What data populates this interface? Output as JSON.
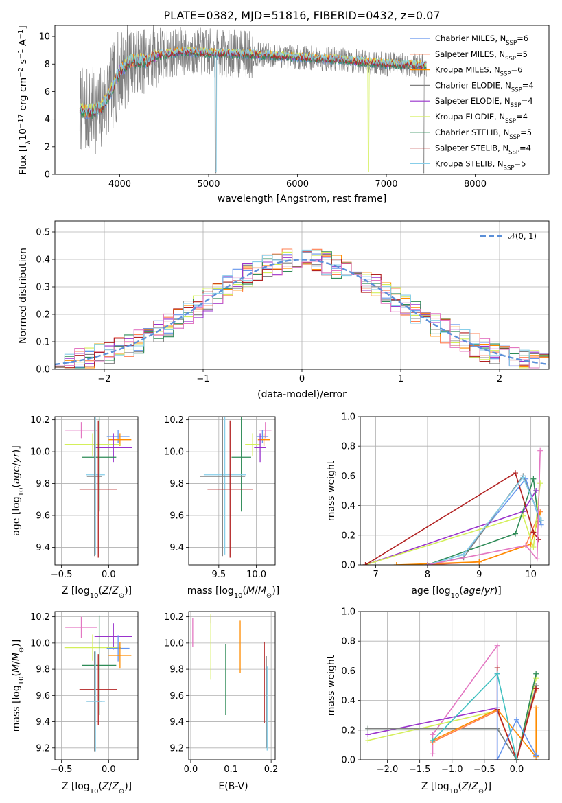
{
  "colors": {
    "Chabrier MILES": "#6495ed",
    "Salpeter MILES": "#ff7f50",
    "Kroupa MILES": "#ff8c00",
    "Chabrier ELODIE": "#808080",
    "Salpeter ELODIE": "#9932cc",
    "Kroupa ELODIE": "#d4ef5a",
    "Chabrier STELIB": "#2e8b57",
    "Salpeter STELIB": "#b22222",
    "Kroupa STELIB": "#87cee9",
    "Pink": "#e377c2",
    "Teal": "#40c0c0"
  },
  "chart_data": [
    {
      "id": "spectrum",
      "type": "line",
      "title": "PLATE=0382, MJD=51816, FIBERID=0432, z=0.07",
      "xlabel": "wavelength [Angstrom, rest frame]",
      "ylabel": "Flux [f_λ 10^−17 erg cm^−2 s^−1 A^−1]",
      "xlim": [
        3270,
        8830
      ],
      "ylim": [
        0,
        10.8
      ],
      "xticks": [
        4000,
        5000,
        6000,
        7000,
        8000
      ],
      "yticks": [
        0,
        2,
        4,
        6,
        8,
        10
      ],
      "legend": [
        {
          "label": "Chabrier MILES, N",
          "sub": "SSP",
          "tail": "=6",
          "color": "#6495ed"
        },
        {
          "label": "Salpeter MILES, N",
          "sub": "SSP",
          "tail": "=5",
          "color": "#ff7f50"
        },
        {
          "label": "Kroupa MILES, N",
          "sub": "SSP",
          "tail": "=6",
          "color": "#ff8c00"
        },
        {
          "label": "Chabrier ELODIE, N",
          "sub": "SSP",
          "tail": "=4",
          "color": "#808080"
        },
        {
          "label": "Salpeter ELODIE, N",
          "sub": "SSP",
          "tail": "=4",
          "color": "#9932cc"
        },
        {
          "label": "Kroupa ELODIE, N",
          "sub": "SSP",
          "tail": "=4",
          "color": "#d4ef5a"
        },
        {
          "label": "Chabrier STELIB, N",
          "sub": "SSP",
          "tail": "=5",
          "color": "#2e8b57"
        },
        {
          "label": "Salpeter STELIB, N",
          "sub": "SSP",
          "tail": "=4",
          "color": "#b22222"
        },
        {
          "label": "Kroupa STELIB, N",
          "sub": "SSP",
          "tail": "=5",
          "color": "#87cee9"
        }
      ],
      "legend_position": "upper right",
      "continuum_model": {
        "x": [
          3550,
          3600,
          3700,
          3800,
          3900,
          4000,
          4100,
          4200,
          4300,
          4400,
          4500,
          4700,
          5000,
          5500,
          6000,
          6500,
          7000,
          7400
        ],
        "y": [
          4.8,
          4.5,
          4.6,
          4.9,
          6.0,
          7.5,
          8.1,
          8.3,
          8.2,
          8.6,
          8.7,
          8.9,
          8.8,
          8.7,
          8.5,
          8.3,
          8.0,
          7.9
        ]
      },
      "data_range": [
        3550,
        7450
      ],
      "grid": false
    },
    {
      "id": "residual-histogram",
      "type": "bar",
      "xlabel": "(data-model)/error",
      "ylabel": "Normed distribution",
      "xlim": [
        -2.5,
        2.5
      ],
      "ylim": [
        0,
        0.54
      ],
      "xticks": [
        -2,
        -1,
        0,
        1,
        2
      ],
      "yticks": [
        0.0,
        0.1,
        0.2,
        0.3,
        0.4,
        0.5
      ],
      "bin_width": 0.1,
      "bin_edges_start": -2.5,
      "gaussian": {
        "label": "𝒩(0, 1)",
        "mean": 0,
        "sigma": 1,
        "color": "#5b8fd8"
      },
      "grid": true
    },
    {
      "id": "age-vs-Z",
      "type": "scatter",
      "xlabel": "Z [log10(Z/Z⊙)]",
      "ylabel": "age  [log10(age/yr)]",
      "xlim": [
        -0.57,
        0.31
      ],
      "ylim": [
        9.29,
        10.22
      ],
      "xticks": [
        -0.5,
        0.0
      ],
      "yticks": [
        9.4,
        9.6,
        9.8,
        10.0,
        10.2
      ],
      "points": [
        {
          "color": "#e377c2",
          "x": -0.29,
          "xerr": 0.17,
          "y": 10.135,
          "yerr": 0.05
        },
        {
          "color": "#6495ed",
          "x": 0.1,
          "xerr": 0.12,
          "y": 10.095,
          "yerr": 0.04
        },
        {
          "color": "#ff8c00",
          "x": 0.12,
          "xerr": 0.12,
          "y": 10.075,
          "yerr": 0.04
        },
        {
          "color": "#d4ef5a",
          "x": -0.17,
          "xerr": 0.3,
          "y": 10.045,
          "yerr": 0.07
        },
        {
          "color": "#9932cc",
          "x": 0.05,
          "xerr": 0.2,
          "y": 10.025,
          "yerr": 0.09
        },
        {
          "color": "#2e8b57",
          "x": -0.1,
          "xerr": 0.18,
          "y": 9.965,
          "yerr": 0.34
        },
        {
          "color": "#87cee9",
          "x": -0.14,
          "xerr": 0.1,
          "y": 9.855,
          "yerr": 0.5
        },
        {
          "color": "#808080",
          "x": -0.15,
          "xerr": 0.08,
          "y": 9.845,
          "yerr": 0.5
        },
        {
          "color": "#b22222",
          "x": -0.11,
          "xerr": 0.2,
          "y": 9.765,
          "yerr": 0.43
        }
      ],
      "grid": true
    },
    {
      "id": "age-vs-mass",
      "type": "scatter",
      "xlabel": "mass [log10(M/M⊙)]",
      "ylabel": "",
      "xlim": [
        9.1,
        10.25
      ],
      "ylim": [
        9.29,
        10.22
      ],
      "xticks": [
        9.5,
        10.0
      ],
      "yticks": [
        9.4,
        9.6,
        9.8,
        10.0,
        10.2
      ],
      "points": [
        {
          "color": "#e377c2",
          "x": 10.12,
          "xerr": 0.08,
          "y": 10.135,
          "yerr": 0.05
        },
        {
          "color": "#6495ed",
          "x": 10.08,
          "xerr": 0.08,
          "y": 10.095,
          "yerr": 0.04
        },
        {
          "color": "#ff8c00",
          "x": 10.1,
          "xerr": 0.08,
          "y": 10.075,
          "yerr": 0.04
        },
        {
          "color": "#d4ef5a",
          "x": 9.95,
          "xerr": 0.1,
          "y": 10.045,
          "yerr": 0.07
        },
        {
          "color": "#9932cc",
          "x": 10.05,
          "xerr": 0.08,
          "y": 10.025,
          "yerr": 0.09
        },
        {
          "color": "#2e8b57",
          "x": 9.8,
          "xerr": 0.13,
          "y": 9.965,
          "yerr": 0.34
        },
        {
          "color": "#87cee9",
          "x": 9.58,
          "xerr": 0.28,
          "y": 9.855,
          "yerr": 0.5
        },
        {
          "color": "#808080",
          "x": 9.55,
          "xerr": 0.3,
          "y": 9.845,
          "yerr": 0.5
        },
        {
          "color": "#b22222",
          "x": 9.65,
          "xerr": 0.3,
          "y": 9.765,
          "yerr": 0.43
        }
      ],
      "grid": true
    },
    {
      "id": "weight-vs-age",
      "type": "line",
      "xlabel": "age  [log10(age/yr)]",
      "ylabel": "mass weight",
      "xlim": [
        6.7,
        10.35
      ],
      "ylim": [
        0,
        1.0
      ],
      "xticks": [
        7,
        8,
        9,
        10
      ],
      "yticks": [
        0.0,
        0.2,
        0.4,
        0.6,
        0.8,
        1.0
      ],
      "series": [
        {
          "color": "#6495ed",
          "x": [
            8.0,
            8.7,
            9.9,
            10.2
          ],
          "y": [
            0.0,
            0.07,
            0.58,
            0.27
          ]
        },
        {
          "color": "#ff7f50",
          "x": [
            8.0,
            9.0,
            9.9,
            10.18
          ],
          "y": [
            0.0,
            0.02,
            0.13,
            0.36
          ]
        },
        {
          "color": "#ff8c00",
          "x": [
            7.4,
            9.0,
            10.0,
            10.18
          ],
          "y": [
            0.0,
            0.02,
            0.14,
            0.35
          ]
        },
        {
          "color": "#808080",
          "x": [
            8.0,
            8.7,
            9.85,
            10.2
          ],
          "y": [
            0.0,
            0.05,
            0.6,
            0.3
          ]
        },
        {
          "color": "#9932cc",
          "x": [
            6.8,
            9.85,
            10.1
          ],
          "y": [
            0.0,
            0.36,
            0.5
          ]
        },
        {
          "color": "#d4ef5a",
          "x": [
            6.8,
            9.85,
            10.05,
            10.18
          ],
          "y": [
            0.0,
            0.33,
            0.12,
            0.55
          ]
        },
        {
          "color": "#2e8b57",
          "x": [
            8.0,
            9.7,
            10.05,
            10.15
          ],
          "y": [
            0.0,
            0.21,
            0.58,
            0.29
          ]
        },
        {
          "color": "#b22222",
          "x": [
            6.8,
            9.7,
            10.05,
            10.15
          ],
          "y": [
            0.0,
            0.62,
            0.22,
            0.17
          ]
        },
        {
          "color": "#87cee9",
          "x": [
            8.0,
            8.7,
            9.85,
            10.2
          ],
          "y": [
            0.0,
            0.07,
            0.59,
            0.3
          ]
        },
        {
          "color": "#e377c2",
          "x": [
            8.0,
            9.9,
            10.12,
            10.18
          ],
          "y": [
            0.0,
            0.13,
            0.04,
            0.77
          ]
        }
      ],
      "grid": true
    },
    {
      "id": "mass-vs-Z",
      "type": "scatter",
      "xlabel": "Z [log10(Z/Z⊙)]",
      "ylabel": "mass [log10(M/M⊙)]",
      "xlim": [
        -0.57,
        0.31
      ],
      "ylim": [
        9.11,
        10.24
      ],
      "xticks": [
        -0.5,
        0.0
      ],
      "yticks": [
        9.2,
        9.4,
        9.6,
        9.8,
        10.0,
        10.2
      ],
      "points": [
        {
          "color": "#e377c2",
          "x": -0.29,
          "xerr": 0.17,
          "y": 10.12,
          "yerr": 0.08
        },
        {
          "color": "#9932cc",
          "x": 0.05,
          "xerr": 0.2,
          "y": 10.05,
          "yerr": 0.1
        },
        {
          "color": "#d4ef5a",
          "x": -0.17,
          "xerr": 0.3,
          "y": 9.965,
          "yerr": 0.1
        },
        {
          "color": "#6495ed",
          "x": 0.1,
          "xerr": 0.12,
          "y": 9.96,
          "yerr": 0.1
        },
        {
          "color": "#ff8c00",
          "x": 0.12,
          "xerr": 0.12,
          "y": 9.905,
          "yerr": 0.1
        },
        {
          "color": "#2e8b57",
          "x": -0.1,
          "xerr": 0.18,
          "y": 9.83,
          "yerr": 0.38
        },
        {
          "color": "#b22222",
          "x": -0.11,
          "xerr": 0.2,
          "y": 9.645,
          "yerr": 0.27
        },
        {
          "color": "#808080",
          "x": -0.15,
          "xerr": 0.08,
          "y": 9.555,
          "yerr": 0.38
        },
        {
          "color": "#87cee9",
          "x": -0.14,
          "xerr": 0.1,
          "y": 9.555,
          "yerr": 0.38
        }
      ],
      "grid": true
    },
    {
      "id": "mass-vs-EBV",
      "type": "scatter",
      "xlabel": "E(B-V)",
      "ylabel": "",
      "xlim": [
        -0.005,
        0.21
      ],
      "ylim": [
        9.11,
        10.24
      ],
      "xticks": [
        0.0,
        0.1,
        0.2
      ],
      "yticks": [
        9.2,
        9.4,
        9.6,
        9.8,
        10.0,
        10.2
      ],
      "points": [
        {
          "color": "#e377c2",
          "x": 0.005,
          "xerr": 0,
          "y": 10.08,
          "yerr": 0.11
        },
        {
          "color": "#9932cc",
          "x": 0.05,
          "xerr": 0,
          "y": 10.18,
          "yerr": 0.03
        },
        {
          "color": "#d4ef5a",
          "x": 0.05,
          "xerr": 0,
          "y": 9.97,
          "yerr": 0.25
        },
        {
          "color": "#2e8b57",
          "x": 0.087,
          "xerr": 0,
          "y": 9.72,
          "yerr": 0.27
        },
        {
          "color": "#ff8c00",
          "x": 0.123,
          "xerr": 0,
          "y": 9.97,
          "yerr": 0.2
        },
        {
          "color": "#b22222",
          "x": 0.183,
          "xerr": 0,
          "y": 9.7,
          "yerr": 0.31
        },
        {
          "color": "#808080",
          "x": 0.188,
          "xerr": 0,
          "y": 9.55,
          "yerr": 0.35
        },
        {
          "color": "#87cee9",
          "x": 0.19,
          "xerr": 0,
          "y": 9.5,
          "yerr": 0.32
        }
      ],
      "grid": true
    },
    {
      "id": "weight-vs-Z",
      "type": "line",
      "xlabel": "Z [log10(Z/Z⊙)]",
      "ylabel": "mass weight",
      "xlim": [
        -2.42,
        0.5
      ],
      "ylim": [
        0,
        1.0
      ],
      "xticks": [
        -2.0,
        -1.5,
        -1.0,
        -0.5,
        0.0
      ],
      "yticks": [
        0.0,
        0.2,
        0.4,
        0.6,
        0.8,
        1.0
      ],
      "series": [
        {
          "color": "#e377c2",
          "x": [
            -1.3,
            -1.3,
            -0.3,
            -0.3
          ],
          "y": [
            0.04,
            0.17,
            0.77,
            0.0
          ]
        },
        {
          "color": "#9932cc",
          "x": [
            -2.3,
            -0.3
          ],
          "y": [
            0.17,
            0.35
          ]
        },
        {
          "color": "#d4ef5a",
          "x": [
            -2.3,
            -0.3,
            0.0,
            0.3
          ],
          "y": [
            0.13,
            0.33,
            0.0,
            0.55
          ]
        },
        {
          "color": "#2e8b57",
          "x": [
            -2.3,
            -0.3,
            0.0,
            0.3
          ],
          "y": [
            0.21,
            0.21,
            0.0,
            0.58
          ]
        },
        {
          "color": "#808080",
          "x": [
            -2.3,
            -0.3,
            0.0,
            0.3
          ],
          "y": [
            0.21,
            0.21,
            0.0,
            0.5
          ]
        },
        {
          "color": "#ff7f50",
          "x": [
            -1.3,
            -0.3,
            0.0,
            0.3
          ],
          "y": [
            0.12,
            0.33,
            0.0,
            0.47
          ]
        },
        {
          "color": "#ff8c00",
          "x": [
            -1.3,
            -0.3,
            0.3,
            0.3
          ],
          "y": [
            0.13,
            0.34,
            0.02,
            0.35
          ]
        },
        {
          "color": "#b22222",
          "x": [
            -0.3,
            -0.3,
            0.0,
            0.3
          ],
          "y": [
            0.62,
            0.34,
            0.0,
            0.48
          ]
        },
        {
          "color": "#6495ed",
          "x": [
            -0.3,
            -0.3,
            0.0,
            0.3
          ],
          "y": [
            0.58,
            0.0,
            0.27,
            0.03
          ]
        },
        {
          "color": "#40c0c0",
          "x": [
            -1.3,
            -0.3,
            0.0
          ],
          "y": [
            0.13,
            0.58,
            0.0
          ]
        }
      ],
      "grid": true
    }
  ]
}
